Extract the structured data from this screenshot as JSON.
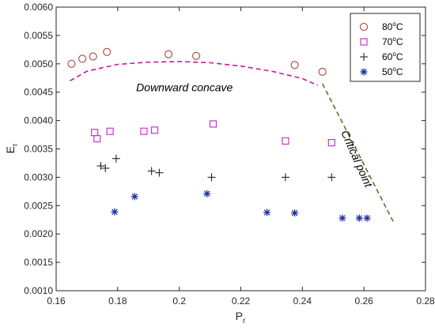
{
  "chart_data": {
    "type": "scatter",
    "xlabel": "P",
    "xlabel_sub": "r",
    "ylabel": "E",
    "ylabel_sub": "r",
    "xlim": [
      0.16,
      0.28
    ],
    "ylim": [
      0.001,
      0.006
    ],
    "xticks": [
      0.16,
      0.18,
      0.2,
      0.22,
      0.24,
      0.26,
      0.28
    ],
    "xtick_labels": [
      "0.16",
      "0.18",
      "0.2",
      "0.22",
      "0.24",
      "0.26",
      "0.28"
    ],
    "yticks": [
      0.001,
      0.0015,
      0.002,
      0.0025,
      0.003,
      0.0035,
      0.004,
      0.0045,
      0.005,
      0.0055,
      0.006
    ],
    "ytick_labels": [
      "0.0010",
      "0.0015",
      "0.0020",
      "0.0025",
      "0.0030",
      "0.0035",
      "0.0040",
      "0.0045",
      "0.0050",
      "0.0055",
      "0.0060"
    ],
    "grid": false,
    "legend_position": "top-right",
    "series": [
      {
        "name": "80°C",
        "name_base": "80",
        "name_sup": "o",
        "name_unit": "C",
        "marker": "circle",
        "color": "#b5524e",
        "x": [
          0.165,
          0.1685,
          0.172,
          0.1765,
          0.1965,
          0.2055,
          0.2375,
          0.2465
        ],
        "y": [
          0.005,
          0.00509,
          0.00513,
          0.00521,
          0.00517,
          0.00514,
          0.00498,
          0.00486
        ]
      },
      {
        "name": "70°C",
        "name_base": "70",
        "name_sup": "o",
        "name_unit": "C",
        "marker": "square",
        "color": "#cc33cc",
        "x": [
          0.1725,
          0.1733,
          0.1775,
          0.1885,
          0.192,
          0.211,
          0.2345,
          0.2495
        ],
        "y": [
          0.00379,
          0.00368,
          0.00381,
          0.00381,
          0.00383,
          0.00394,
          0.00364,
          0.00361
        ]
      },
      {
        "name": "60°C",
        "name_base": "60",
        "name_sup": "o",
        "name_unit": "C",
        "marker": "plus",
        "color": "#222222",
        "x": [
          0.1745,
          0.176,
          0.1795,
          0.191,
          0.1935,
          0.2105,
          0.2345,
          0.2495
        ],
        "y": [
          0.0032,
          0.00316,
          0.00333,
          0.00311,
          0.00308,
          0.003,
          0.003,
          0.003
        ]
      },
      {
        "name": "50°C",
        "name_base": "50",
        "name_sup": "o",
        "name_unit": "C",
        "marker": "asterisk",
        "color": "#1f2fa0",
        "x": [
          0.179,
          0.1855,
          0.209,
          0.2285,
          0.2375,
          0.253,
          0.2585,
          0.261
        ],
        "y": [
          0.00239,
          0.00266,
          0.00271,
          0.00238,
          0.00237,
          0.00228,
          0.00228,
          0.00228
        ]
      }
    ],
    "annotations": [
      {
        "text": "Downward concave",
        "style": "dashed-curve",
        "color": "#c41a9c",
        "curve_x": [
          0.1645,
          0.17,
          0.18,
          0.19,
          0.2,
          0.21,
          0.22,
          0.23,
          0.24,
          0.245
        ],
        "curve_y": [
          0.0047,
          0.00487,
          0.00499,
          0.00503,
          0.00504,
          0.00502,
          0.00496,
          0.00487,
          0.00474,
          0.00462
        ],
        "label_at": [
          0.186,
          0.00452
        ]
      },
      {
        "text": "Critical point",
        "style": "dashed-line",
        "color": "#4a7a2a",
        "line_x": [
          0.2465,
          0.2695
        ],
        "line_y": [
          0.00465,
          0.00222
        ],
        "label_at": [
          0.2525,
          0.00379
        ],
        "label_rotation_deg": 66
      }
    ]
  }
}
